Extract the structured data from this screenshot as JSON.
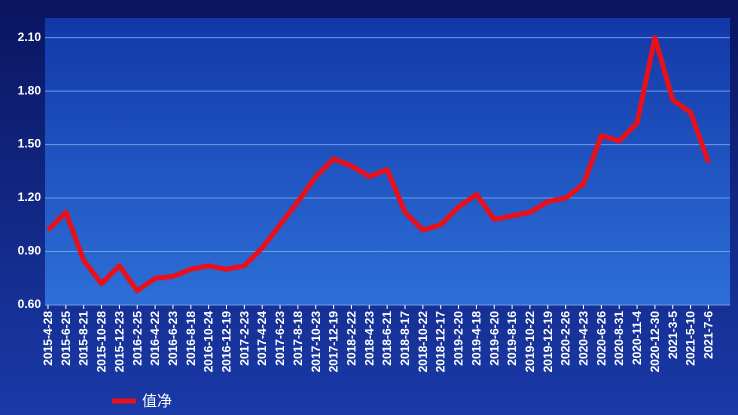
{
  "chart_data": {
    "type": "line",
    "categories": [
      "2015-4-28",
      "2015-6-25",
      "2015-8-21",
      "2015-10-28",
      "2015-12-23",
      "2016-2-25",
      "2016-4-22",
      "2016-6-23",
      "2016-8-18",
      "2016-10-24",
      "2016-12-19",
      "2017-2-23",
      "2017-4-24",
      "2017-6-23",
      "2017-8-18",
      "2017-10-23",
      "2017-12-19",
      "2018-2-22",
      "2018-4-23",
      "2018-6-21",
      "2018-8-17",
      "2018-10-22",
      "2018-12-17",
      "2019-2-20",
      "2019-4-18",
      "2019-6-20",
      "2019-8-16",
      "2019-10-22",
      "2019-12-19",
      "2020-2-26",
      "2020-4-23",
      "2020-6-26",
      "2020-8-31",
      "2020-11-4",
      "2020-12-30",
      "2021-3-5",
      "2021-5-10",
      "2021-7-6"
    ],
    "series": [
      {
        "name": "值净",
        "color": "#e8101a",
        "values": [
          1.02,
          1.12,
          0.85,
          0.72,
          0.82,
          0.68,
          0.75,
          0.76,
          0.8,
          0.82,
          0.8,
          0.82,
          0.92,
          1.05,
          1.18,
          1.32,
          1.42,
          1.38,
          1.32,
          1.36,
          1.12,
          1.02,
          1.05,
          1.15,
          1.22,
          1.08,
          1.1,
          1.12,
          1.18,
          1.2,
          1.28,
          1.55,
          1.52,
          1.62,
          2.1,
          1.75,
          1.68,
          1.4
        ]
      }
    ],
    "ylim": [
      0.6,
      2.21
    ],
    "yticks": [
      {
        "value": 0.6,
        "label": "0.60"
      },
      {
        "value": 0.9,
        "label": "0.90"
      },
      {
        "value": 1.2,
        "label": "1.20"
      },
      {
        "value": 1.5,
        "label": "1.50"
      },
      {
        "value": 1.8,
        "label": "1.80"
      },
      {
        "value": 2.1,
        "label": "2.10"
      }
    ],
    "grid": true
  }
}
